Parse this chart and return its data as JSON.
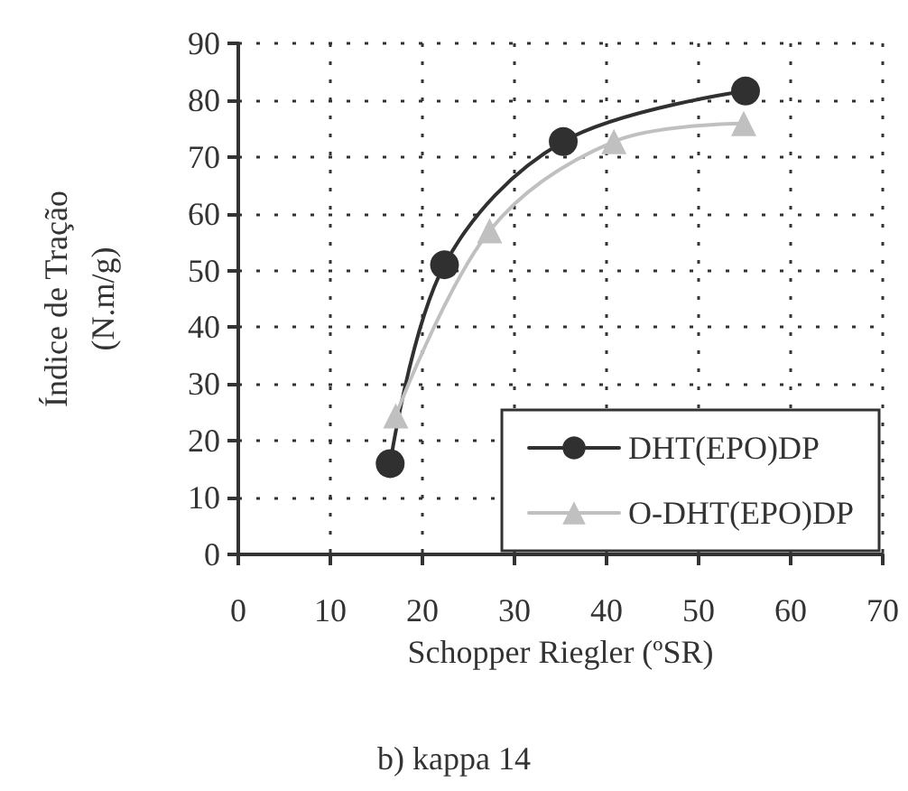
{
  "chart_data": {
    "type": "line",
    "title": "b) kappa 14",
    "xlabel": "Schopper Riegler (ºSR)",
    "ylabel": "Índice de Tração\n(N.m/g)",
    "series": [
      {
        "name": "DHT(EPO)DP",
        "color": "#303030",
        "marker": "circle",
        "x": [
          16.5,
          22.4,
          35.3,
          55.1
        ],
        "values": [
          16,
          51,
          72.7,
          81.6
        ]
      },
      {
        "name": "O-DHT(EPO)DP",
        "color": "#c0c0c0",
        "marker": "triangle",
        "x": [
          17.1,
          27.3,
          40.8,
          54.9
        ],
        "values": [
          24.4,
          57,
          72.7,
          75.9
        ]
      }
    ],
    "xlim": [
      0,
      70
    ],
    "xticks": [
      0,
      10,
      20,
      30,
      40,
      50,
      60,
      70
    ],
    "ylim": [
      0,
      90
    ],
    "yticks": [
      0,
      10,
      20,
      30,
      40,
      50,
      60,
      70,
      80,
      90
    ],
    "grid": true,
    "legend": "bottom right",
    "line_style": "solid"
  }
}
